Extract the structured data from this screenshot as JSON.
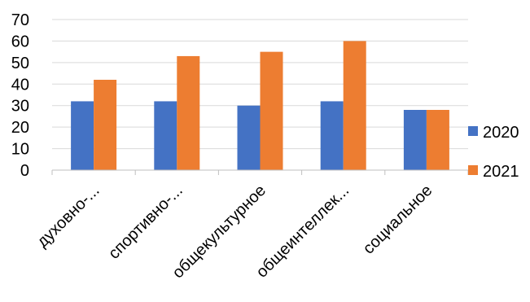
{
  "chart_data": {
    "type": "bar",
    "title": "",
    "xlabel": "",
    "ylabel": "",
    "categories": [
      "духовно-...",
      "спортивно-...",
      "общекультурное",
      "общеинтеллек...",
      "социальное"
    ],
    "series": [
      {
        "name": "2020",
        "color": "#4472C4",
        "values": [
          32,
          32,
          30,
          32,
          28
        ]
      },
      {
        "name": "2021",
        "color": "#ED7D31",
        "values": [
          42,
          53,
          55,
          60,
          28
        ]
      }
    ],
    "ylim": [
      0,
      70
    ],
    "yticks": [
      0,
      10,
      20,
      30,
      40,
      50,
      60,
      70
    ],
    "grid": true,
    "legend_position": "right"
  }
}
